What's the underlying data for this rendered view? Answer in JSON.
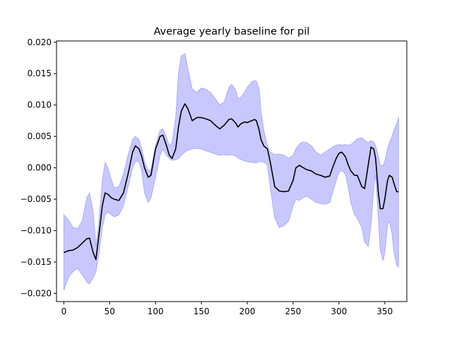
{
  "chart_data": {
    "type": "line",
    "title": "Average yearly baseline for pil",
    "xlabel": "",
    "ylabel": "",
    "xlim": [
      -8,
      374
    ],
    "ylim": [
      -0.0213,
      0.0202
    ],
    "xticks": [
      0,
      50,
      100,
      150,
      200,
      250,
      300,
      350
    ],
    "xtick_labels": [
      "0",
      "50",
      "100",
      "150",
      "200",
      "250",
      "300",
      "350"
    ],
    "yticks": [
      -0.02,
      -0.015,
      -0.01,
      -0.005,
      0.0,
      0.005,
      0.01,
      0.015,
      0.02
    ],
    "ytick_labels": [
      "−0.020",
      "−0.015",
      "−0.010",
      "−0.005",
      "0.000",
      "0.005",
      "0.010",
      "0.015",
      "0.020"
    ],
    "grid": false,
    "colors": {
      "mean_line": "#000000",
      "band_fill": "#c8c8ff",
      "band_edge": "#aaaaff"
    },
    "series": [
      {
        "x": [
          0,
          5,
          10,
          15,
          20,
          25,
          28,
          32,
          35,
          38,
          42,
          45,
          48,
          52,
          55,
          60,
          65,
          70,
          75,
          78,
          82,
          85,
          88,
          92,
          95,
          100,
          105,
          108,
          112,
          115,
          118,
          122,
          125,
          128,
          132,
          135,
          140,
          145,
          150,
          155,
          160,
          165,
          170,
          175,
          180,
          183,
          187,
          190,
          193,
          197,
          200,
          203,
          205,
          208,
          210,
          213,
          215,
          218,
          222,
          225,
          230,
          235,
          240,
          245,
          250,
          253,
          257,
          260,
          265,
          270,
          275,
          280,
          285,
          290,
          293,
          297,
          300,
          303,
          307,
          310,
          313,
          317,
          320,
          325,
          328,
          332,
          335,
          338,
          340,
          343,
          345,
          348,
          350,
          353,
          355,
          358,
          360,
          363,
          365
        ],
        "mean": [
          -0.0135,
          -0.0132,
          -0.0131,
          -0.0127,
          -0.012,
          -0.0113,
          -0.0112,
          -0.0135,
          -0.0146,
          -0.011,
          -0.006,
          -0.004,
          -0.0042,
          -0.0048,
          -0.005,
          -0.0052,
          -0.004,
          -0.001,
          0.0025,
          0.0035,
          0.003,
          0.0018,
          0.0,
          -0.0015,
          -0.0012,
          0.003,
          0.005,
          0.0052,
          0.0035,
          0.002,
          0.0015,
          0.003,
          0.0065,
          0.009,
          0.0102,
          0.0095,
          0.0075,
          0.008,
          0.008,
          0.0078,
          0.0075,
          0.0068,
          0.0062,
          0.0068,
          0.0077,
          0.0078,
          0.0072,
          0.0065,
          0.007,
          0.0073,
          0.0072,
          0.0074,
          0.0075,
          0.0077,
          0.0075,
          0.006,
          0.0045,
          0.0035,
          0.003,
          0.001,
          -0.003,
          -0.0037,
          -0.0038,
          -0.0037,
          -0.002,
          0.0,
          0.0004,
          0.0001,
          -0.0003,
          -0.0005,
          -0.001,
          -0.0012,
          -0.0015,
          -0.0013,
          0.0,
          0.0015,
          0.0023,
          0.0025,
          0.0018,
          0.0005,
          -0.0005,
          -0.0012,
          -0.0012,
          -0.003,
          -0.0033,
          0.0005,
          0.0033,
          0.003,
          0.0015,
          -0.004,
          -0.0065,
          -0.0065,
          -0.005,
          -0.002,
          -0.0012,
          -0.0015,
          -0.0025,
          -0.0038,
          -0.0038
        ],
        "upper": [
          -0.0075,
          -0.0083,
          -0.0095,
          -0.0097,
          -0.0085,
          -0.0048,
          -0.004,
          -0.007,
          -0.0125,
          -0.009,
          -0.002,
          0.0008,
          0.0,
          -0.002,
          -0.0032,
          -0.003,
          -0.001,
          0.002,
          0.0045,
          0.005,
          0.0045,
          0.003,
          0.001,
          -0.0005,
          -0.0003,
          0.0035,
          0.006,
          0.0062,
          0.0048,
          0.0035,
          0.004,
          0.008,
          0.015,
          0.0178,
          0.0182,
          0.016,
          0.0125,
          0.012,
          0.0127,
          0.0125,
          0.012,
          0.011,
          0.01,
          0.0105,
          0.0128,
          0.0133,
          0.0125,
          0.011,
          0.0112,
          0.012,
          0.0128,
          0.0133,
          0.0137,
          0.0139,
          0.0138,
          0.0125,
          0.009,
          0.006,
          0.0035,
          0.0025,
          0.0021,
          0.0022,
          0.002,
          0.0015,
          0.002,
          0.003,
          0.0038,
          0.0041,
          0.004,
          0.0035,
          0.0025,
          0.002,
          0.0025,
          0.003,
          0.0033,
          0.0036,
          0.0037,
          0.0036,
          0.0037,
          0.0036,
          0.0037,
          0.0042,
          0.0046,
          0.0048,
          0.0044,
          0.004,
          0.0043,
          0.0041,
          0.0035,
          0.0018,
          0.0005,
          0.0003,
          0.001,
          0.003,
          0.004,
          0.005,
          0.006,
          0.007,
          0.008
        ],
        "lower": [
          -0.0195,
          -0.0175,
          -0.0165,
          -0.016,
          -0.017,
          -0.0182,
          -0.0185,
          -0.0175,
          -0.0165,
          -0.014,
          -0.0095,
          -0.0075,
          -0.007,
          -0.0075,
          -0.0078,
          -0.0075,
          -0.006,
          -0.003,
          0.0,
          0.001,
          0.001,
          -0.0005,
          -0.004,
          -0.0055,
          -0.0048,
          -0.0015,
          0.002,
          0.003,
          0.002,
          0.0015,
          0.0012,
          0.0013,
          0.0015,
          0.002,
          0.0025,
          0.0028,
          0.003,
          0.0031,
          0.003,
          0.0027,
          0.0025,
          0.0022,
          0.002,
          0.0021,
          0.002,
          0.0021,
          0.0019,
          0.0016,
          0.0013,
          0.0011,
          0.001,
          0.0009,
          0.0009,
          0.0008,
          0.0008,
          0.001,
          0.001,
          0.0009,
          0.0005,
          -0.003,
          -0.008,
          -0.0095,
          -0.0092,
          -0.0085,
          -0.006,
          -0.005,
          -0.0052,
          -0.0048,
          -0.0045,
          -0.005,
          -0.0055,
          -0.0057,
          -0.0058,
          -0.0055,
          -0.004,
          -0.002,
          -0.0007,
          -0.0004,
          -0.001,
          -0.003,
          -0.0055,
          -0.0075,
          -0.008,
          -0.0095,
          -0.0118,
          -0.0125,
          -0.009,
          -0.003,
          -0.001,
          -0.008,
          -0.013,
          -0.0148,
          -0.0135,
          -0.009,
          -0.0085,
          -0.0105,
          -0.0135,
          -0.0155,
          -0.0158
        ]
      }
    ]
  }
}
